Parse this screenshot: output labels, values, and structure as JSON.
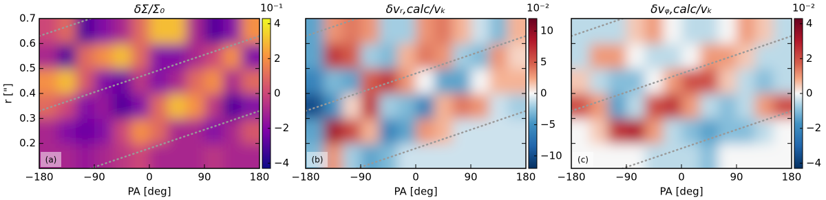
{
  "chart_data": [
    {
      "type": "heatmap",
      "title": "δΣ/Σ₀",
      "xlabel": "PA [deg]",
      "ylabel": "r [\"]",
      "panel_label": "(a)",
      "colormap": "plasma",
      "colorbar_label": "10⁻¹",
      "x": [
        -165,
        -135,
        -105,
        -75,
        -45,
        -15,
        15,
        45,
        75,
        105,
        135,
        165
      ],
      "y": [
        0.15,
        0.25,
        0.35,
        0.45,
        0.55,
        0.65
      ],
      "z": [
        [
          -1,
          -1,
          -1.5,
          -1,
          -0.5,
          0,
          -1,
          -1,
          -1,
          -0.5,
          -1,
          -1
        ],
        [
          -1,
          -2,
          -2.5,
          -2,
          0,
          2,
          1,
          -1,
          -1,
          -2,
          -1,
          0.5
        ],
        [
          1,
          0,
          -2,
          -1.5,
          -3,
          -2,
          1,
          3,
          2,
          -0.5,
          -3,
          -2
        ],
        [
          2,
          3,
          0.5,
          -2,
          -2.5,
          -0.5,
          -2,
          -1,
          1,
          2,
          -1,
          1
        ],
        [
          -1,
          -3,
          1,
          2,
          3,
          1,
          -2,
          -2,
          -1,
          0,
          2,
          -2
        ],
        [
          0,
          1,
          -3,
          -2,
          -1,
          1,
          3,
          3,
          -1,
          -3,
          -2,
          2
        ]
      ],
      "xlim": [
        -180,
        180
      ],
      "ylim": [
        0.1,
        0.7
      ],
      "xticks": [
        {
          "value": -180,
          "label": "−180"
        },
        {
          "value": -90,
          "label": "−90"
        },
        0,
        90,
        180
      ],
      "yticks": [
        0.2,
        0.3,
        0.4,
        0.5,
        0.6,
        0.7
      ],
      "clim": [
        -4.3,
        4.3
      ],
      "cticks": [
        {
          "value": -4,
          "label": "−4"
        },
        {
          "value": -2,
          "label": "−2"
        },
        0,
        2,
        4
      ]
    },
    {
      "type": "heatmap",
      "title": "δvᵣ,calc/vₖ",
      "xlabel": "PA [deg]",
      "panel_label": "(b)",
      "colormap": "RdBu_r",
      "colorbar_label": "10⁻²",
      "x": [
        -165,
        -135,
        -105,
        -75,
        -45,
        -15,
        15,
        45,
        75,
        105,
        135,
        165
      ],
      "y": [
        0.15,
        0.25,
        0.35,
        0.45,
        0.55,
        0.65
      ],
      "z": [
        [
          -3,
          3,
          -2,
          -4,
          -3,
          -1,
          -1,
          -1,
          -1,
          -1,
          -1,
          -1
        ],
        [
          -4,
          9,
          6,
          2,
          -6,
          -4,
          3,
          2,
          -1,
          -1,
          -1,
          -1
        ],
        [
          -10,
          -5,
          1,
          7,
          -2,
          -3,
          -6,
          2,
          4,
          3,
          -1,
          -2
        ],
        [
          -6,
          -3,
          -4,
          5,
          7,
          3,
          0,
          -4,
          -4,
          0,
          2,
          2
        ],
        [
          -4,
          7,
          5,
          -2,
          -3,
          2,
          4,
          3,
          -2,
          -3,
          3,
          1
        ],
        [
          -4,
          3,
          4,
          3,
          -2,
          -2,
          3,
          4,
          2,
          -1,
          -3,
          2
        ]
      ],
      "xlim": [
        -180,
        180
      ],
      "ylim": [
        0.1,
        0.7
      ],
      "xticks": [
        {
          "value": -180,
          "label": "−180"
        },
        {
          "value": -90,
          "label": "−90"
        },
        0,
        90,
        180
      ],
      "yticks": [
        0.2,
        0.3,
        0.4,
        0.5,
        0.6,
        0.7
      ],
      "clim": [
        -12,
        12
      ],
      "cticks": [
        {
          "value": -10,
          "label": "−10"
        },
        {
          "value": -5,
          "label": "−5"
        },
        0,
        5,
        10
      ]
    },
    {
      "type": "heatmap",
      "title": "δvᵩ,calc/vₖ",
      "xlabel": "PA [deg]",
      "panel_label": "(c)",
      "colormap": "RdBu_r",
      "colorbar_label": "10⁻²",
      "x": [
        -165,
        -135,
        -105,
        -75,
        -45,
        -15,
        15,
        45,
        75,
        105,
        135,
        165
      ],
      "y": [
        0.15,
        0.25,
        0.35,
        0.45,
        0.55,
        0.65
      ],
      "z": [
        [
          0,
          0,
          0,
          0,
          -0.5,
          -0.5,
          -0.5,
          -1,
          0,
          0,
          0,
          0
        ],
        [
          0,
          0.5,
          2.5,
          3,
          1,
          -0.5,
          -1,
          -1.5,
          -1,
          -1,
          -0.5,
          0
        ],
        [
          2,
          1,
          -1.5,
          -0.5,
          2,
          2.5,
          1,
          -0.5,
          -1,
          -0.5,
          1,
          2
        ],
        [
          0.5,
          -0.5,
          -1,
          -1,
          0,
          1,
          2,
          2,
          0.5,
          -0.5,
          -1,
          -0.5
        ],
        [
          -0.5,
          1,
          1,
          0,
          -0.5,
          -0.5,
          0,
          1,
          1,
          0.5,
          -0.5,
          -0.5
        ],
        [
          -0.5,
          -0.5,
          -0.5,
          0.5,
          1,
          0,
          -0.5,
          -0.5,
          0,
          1,
          0.5,
          -0.5
        ]
      ],
      "xlim": [
        -180,
        180
      ],
      "ylim": [
        0.1,
        0.7
      ],
      "xticks": [
        {
          "value": -180,
          "label": "−180"
        },
        {
          "value": -90,
          "label": "−90"
        },
        0,
        90,
        180
      ],
      "yticks": [
        0.2,
        0.3,
        0.4,
        0.5,
        0.6,
        0.7
      ],
      "clim": [
        -4.3,
        4.3
      ],
      "cticks": [
        {
          "value": -4,
          "label": "−4"
        },
        {
          "value": -2,
          "label": "−2"
        },
        0,
        2,
        4
      ]
    }
  ]
}
